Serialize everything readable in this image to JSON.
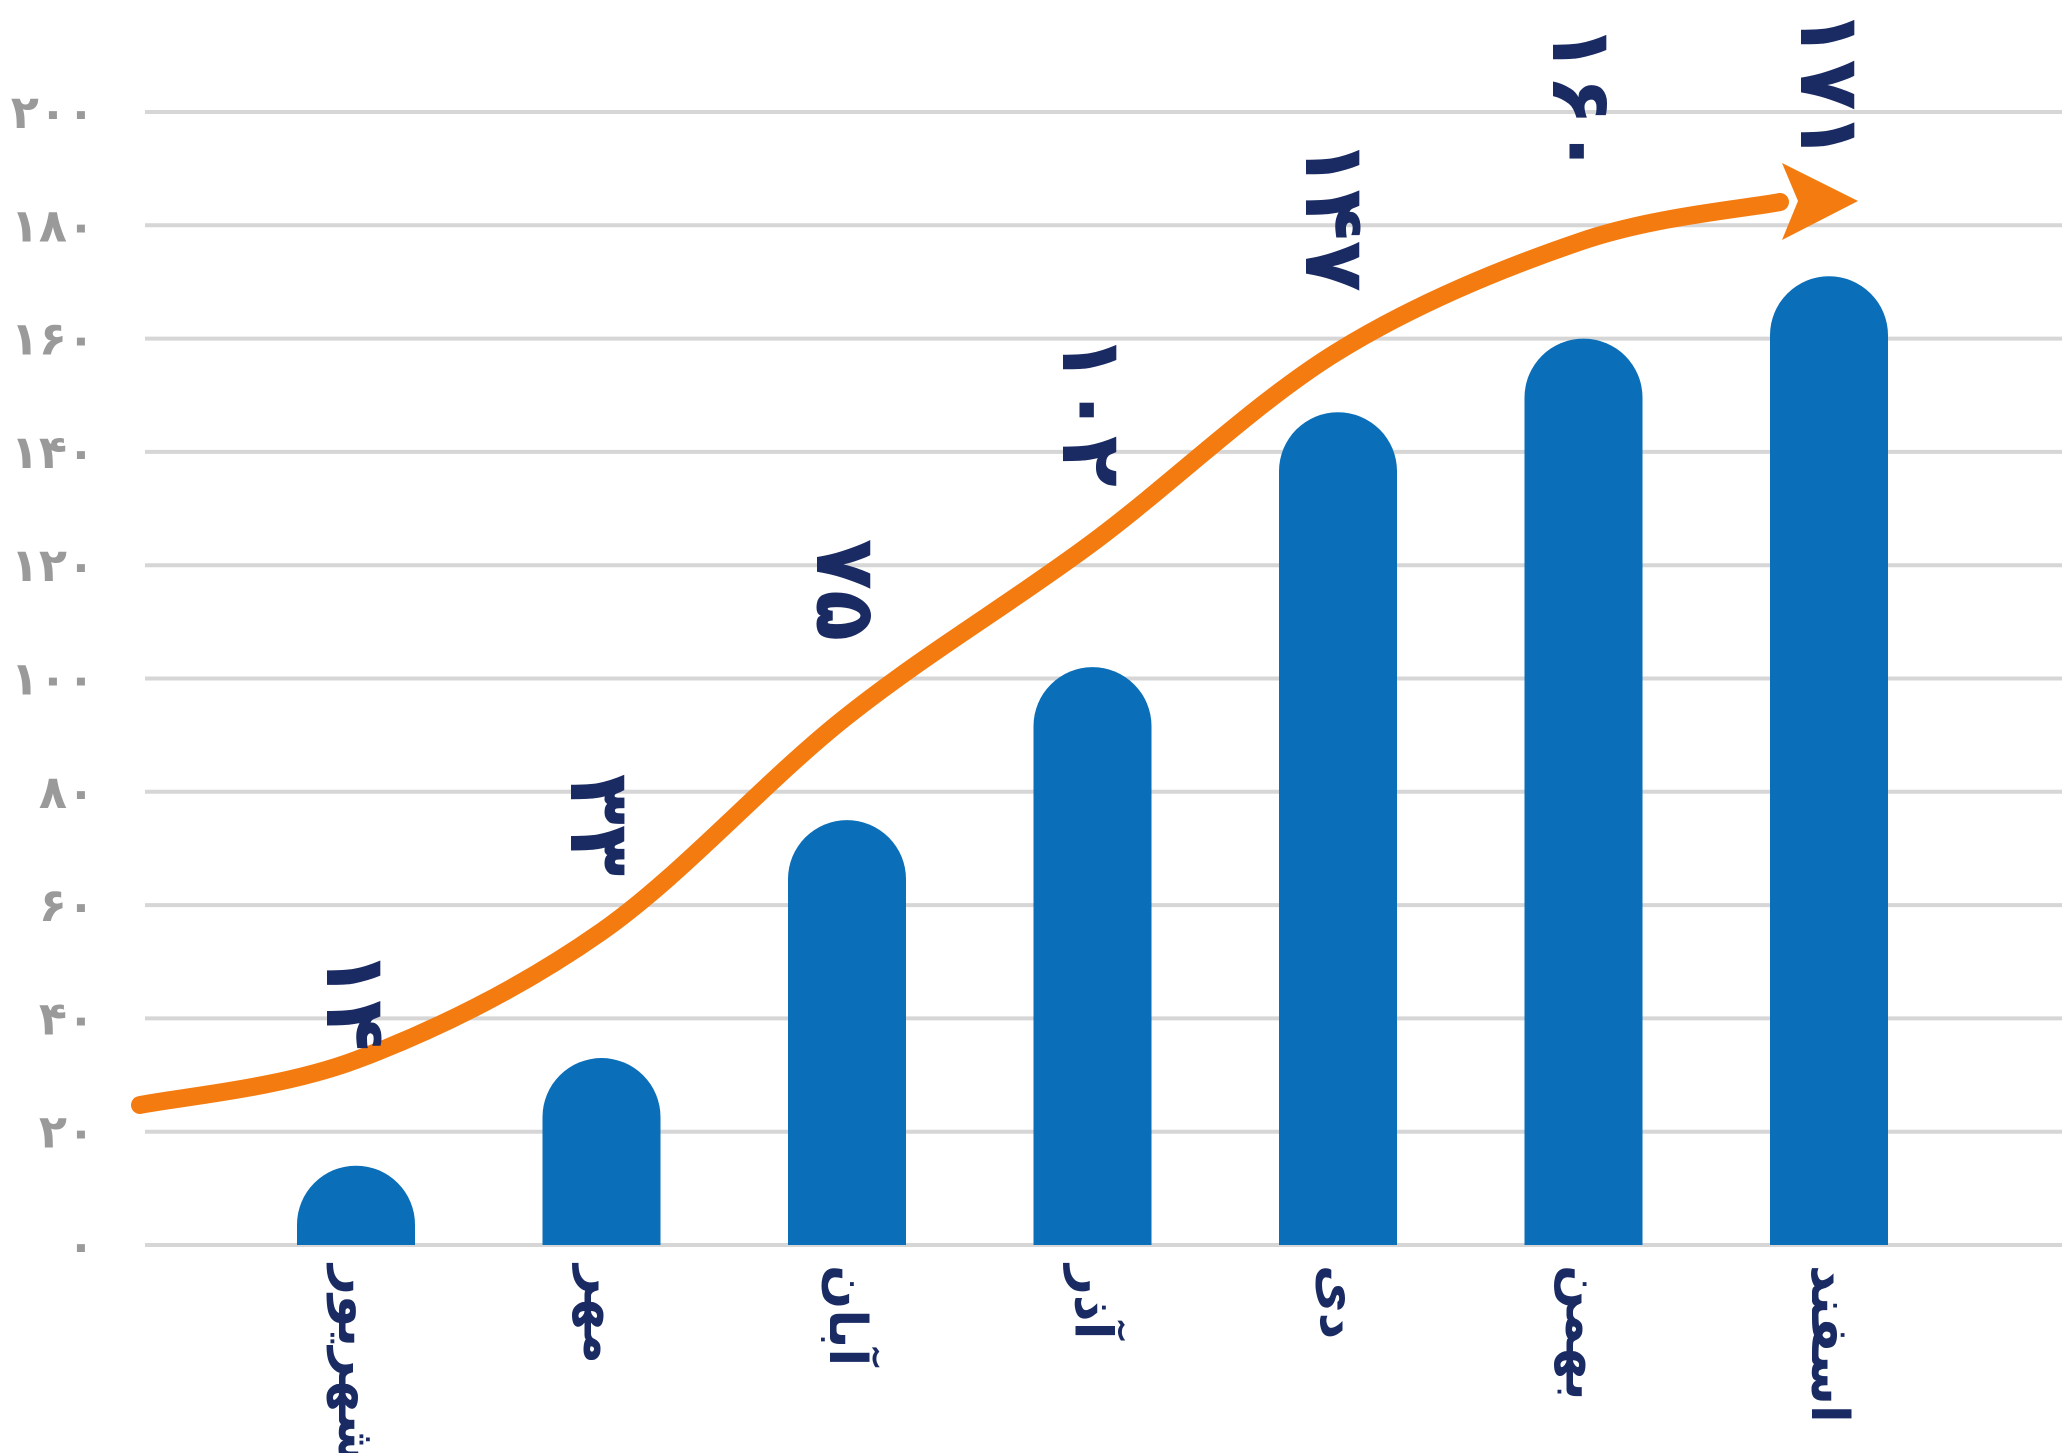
{
  "chart_data": {
    "type": "bar",
    "title": "",
    "xlabel": "",
    "ylabel": "",
    "categories": [
      "شهریور",
      "مهر",
      "آبان",
      "آذر",
      "دی",
      "بهمن",
      "اسفند"
    ],
    "values": [
      14,
      33,
      75,
      102,
      147,
      160,
      171
    ],
    "data_labels": [
      "۱۴",
      "۳۳",
      "۷۵",
      "۱۰۲",
      "۱۴۷",
      "۱۶۰",
      "۱۷۱"
    ],
    "ylim": [
      0,
      200
    ],
    "yticks": [
      0,
      20,
      40,
      60,
      80,
      100,
      120,
      140,
      160,
      180,
      200
    ],
    "ytick_labels": [
      "۰",
      "۲۰",
      "۴۰",
      "۶۰",
      "۸۰",
      "۱۰۰",
      "۱۲۰",
      "۱۴۰",
      "۱۶۰",
      "۱۸۰",
      "۲۰۰"
    ],
    "grid": true,
    "legend": "none",
    "trend_arrow": true,
    "colors": {
      "bar": "#0a6eb8",
      "arrow": "#f47b0f",
      "labels": "#1a2b63",
      "grid": "#d6d6d6",
      "ytick": "#9a9a9a"
    }
  }
}
